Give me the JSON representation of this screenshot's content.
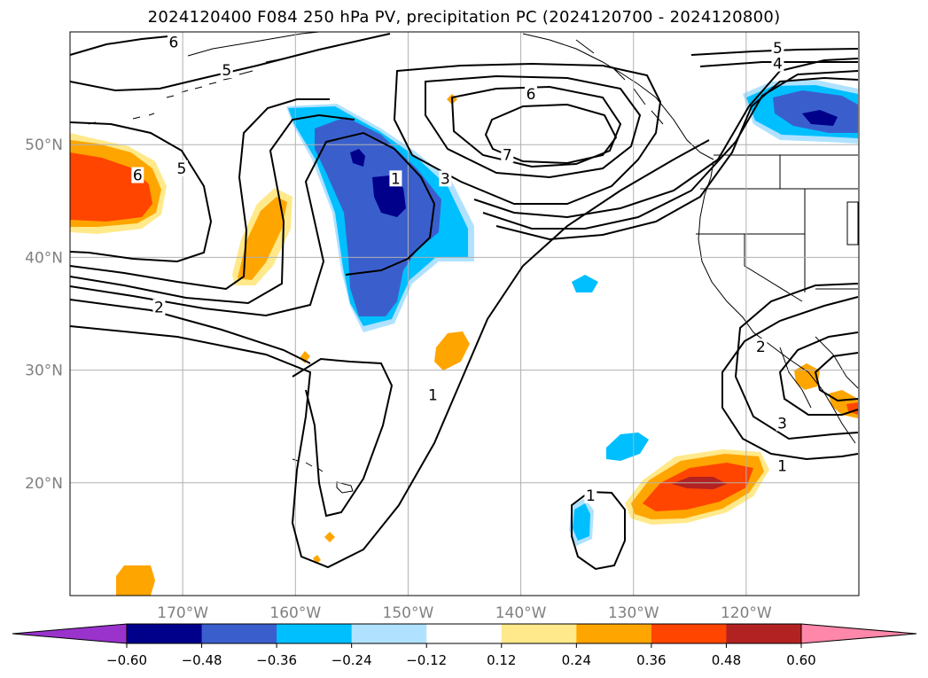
{
  "title": "2024120400 F084 250 hPa PV, precipitation PC (2024120700 - 2024120800)",
  "map": {
    "projection": "PlateCarree",
    "lon_range": [
      -180,
      -110
    ],
    "lat_range": [
      10,
      60
    ],
    "grid": true,
    "lon_ticks": [
      {
        "lon": -170,
        "label": "170°W"
      },
      {
        "lon": -160,
        "label": "160°W"
      },
      {
        "lon": -150,
        "label": "150°W"
      },
      {
        "lon": -140,
        "label": "140°W"
      },
      {
        "lon": -130,
        "label": "130°W"
      },
      {
        "lon": -120,
        "label": "120°W"
      }
    ],
    "lat_ticks": [
      {
        "lat": 50,
        "label": "50°N"
      },
      {
        "lat": 40,
        "label": "40°N"
      },
      {
        "lat": 30,
        "label": "30°N"
      },
      {
        "lat": 20,
        "label": "20°N"
      }
    ],
    "pv_contour_labels": [
      {
        "text": "6",
        "lon": -170.8,
        "lat": 59.1
      },
      {
        "text": "5",
        "lon": -166.1,
        "lat": 56.6
      },
      {
        "text": "6",
        "lon": -174,
        "lat": 47.3
      },
      {
        "text": "5",
        "lon": -170.1,
        "lat": 47.9
      },
      {
        "text": "2",
        "lon": -172.1,
        "lat": 35.6
      },
      {
        "text": "1",
        "lon": -151.1,
        "lat": 47.0
      },
      {
        "text": "3",
        "lon": -146.7,
        "lat": 47.0
      },
      {
        "text": "6",
        "lon": -139.1,
        "lat": 54.5
      },
      {
        "text": "7",
        "lon": -141.2,
        "lat": 49.1
      },
      {
        "text": "5",
        "lon": -117.2,
        "lat": 58.6
      },
      {
        "text": "4",
        "lon": -117.2,
        "lat": 57.2
      },
      {
        "text": "1",
        "lon": -147.8,
        "lat": 27.8
      },
      {
        "text": "1",
        "lon": -133.8,
        "lat": 18.9
      },
      {
        "text": "2",
        "lon": -118.7,
        "lat": 32.1
      },
      {
        "text": "3",
        "lon": -116.8,
        "lat": 25.3
      },
      {
        "text": "1",
        "lon": -116.8,
        "lat": 21.5
      }
    ]
  },
  "colorbar": {
    "levels": [
      -0.6,
      -0.48,
      -0.36,
      -0.24,
      -0.12,
      0.12,
      0.24,
      0.36,
      0.48,
      0.6
    ],
    "tick_labels": [
      "−0.60",
      "−0.48",
      "−0.36",
      "−0.24",
      "−0.12",
      "0.12",
      "0.24",
      "0.36",
      "0.48",
      "0.60"
    ],
    "colors": [
      "#9933cc",
      "#00008b",
      "#3a5fcd",
      "#00bfff",
      "#b0e2ff",
      "#ffffff",
      "#ffe98a",
      "#ffa500",
      "#ff4500",
      "#b22222",
      "#ff88aa"
    ]
  },
  "colors": {
    "contour": "#000000",
    "coast": "#000000",
    "grid": "#b0b0b0",
    "tick_label": "#808080"
  }
}
